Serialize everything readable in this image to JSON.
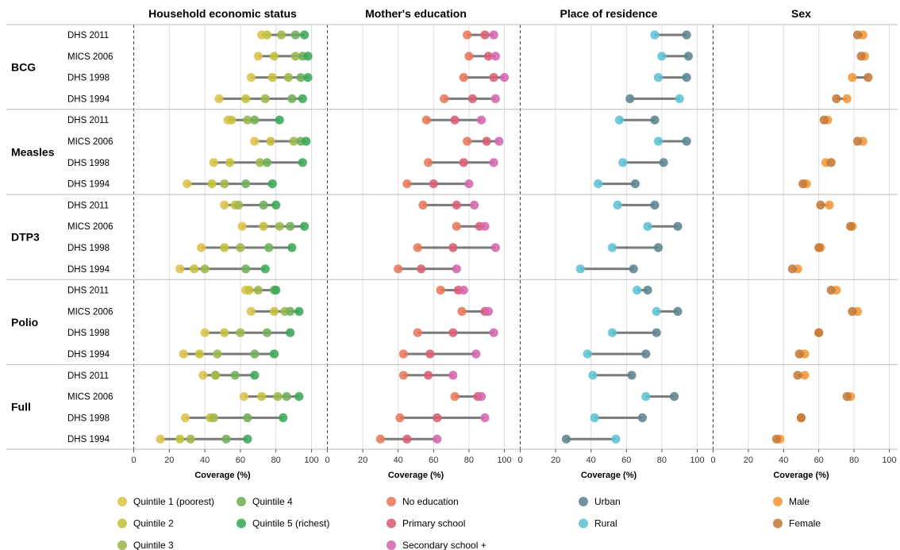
{
  "chart_data": {
    "type": "scatter",
    "xlabel": "Coverage (%)",
    "xlim": [
      0,
      100
    ],
    "xticks": [
      0,
      20,
      40,
      60,
      80,
      100
    ],
    "facets": [
      {
        "key": "wealth",
        "title": "Household economic status"
      },
      {
        "key": "edu",
        "title": "Mother's education"
      },
      {
        "key": "res",
        "title": "Place of residence"
      },
      {
        "key": "sex",
        "title": "Sex"
      }
    ],
    "surveys": [
      "DHS 2011",
      "MICS 2006",
      "DHS 1998",
      "DHS 1994"
    ],
    "indicators": [
      {
        "name": "BCG",
        "values": {
          "DHS 2011": {
            "wealth": [
              72,
              75,
              83,
              91,
              96
            ],
            "edu": [
              79,
              89,
              94
            ],
            "res": [
              94,
              76
            ],
            "sex": [
              85,
              82
            ]
          },
          "MICS 2006": {
            "wealth": [
              70,
              79,
              91,
              95,
              98
            ],
            "edu": [
              80,
              91,
              95
            ],
            "res": [
              95,
              80
            ],
            "sex": [
              86,
              84
            ]
          },
          "DHS 1998": {
            "wealth": [
              66,
              78,
              87,
              94,
              98
            ],
            "edu": [
              77,
              94,
              100
            ],
            "res": [
              94,
              78
            ],
            "sex": [
              79,
              88
            ]
          },
          "DHS 1994": {
            "wealth": [
              48,
              63,
              74,
              89,
              95
            ],
            "edu": [
              66,
              82,
              95
            ],
            "res": [
              62,
              90
            ],
            "sex": [
              76,
              70
            ]
          }
        }
      },
      {
        "name": "Measles",
        "values": {
          "DHS 2011": {
            "wealth": [
              53,
              55,
              64,
              68,
              82
            ],
            "edu": [
              56,
              72,
              87
            ],
            "res": [
              76,
              56
            ],
            "sex": [
              65,
              63
            ]
          },
          "MICS 2006": {
            "wealth": [
              68,
              77,
              90,
              94,
              97
            ],
            "edu": [
              79,
              90,
              97
            ],
            "res": [
              94,
              78
            ],
            "sex": [
              85,
              82
            ]
          },
          "DHS 1998": {
            "wealth": [
              45,
              54,
              71,
              75,
              95
            ],
            "edu": [
              57,
              77,
              94
            ],
            "res": [
              81,
              58
            ],
            "sex": [
              64,
              67
            ]
          },
          "DHS 1994": {
            "wealth": [
              30,
              44,
              51,
              63,
              78
            ],
            "edu": [
              45,
              60,
              80
            ],
            "res": [
              65,
              44
            ],
            "sex": [
              53,
              51
            ]
          }
        }
      },
      {
        "name": "DTP3",
        "values": {
          "DHS 2011": {
            "wealth": [
              51,
              57,
              59,
              73,
              80
            ],
            "edu": [
              54,
              73,
              83
            ],
            "res": [
              76,
              55
            ],
            "sex": [
              66,
              61
            ]
          },
          "MICS 2006": {
            "wealth": [
              61,
              73,
              82,
              88,
              96
            ],
            "edu": [
              73,
              86,
              89
            ],
            "res": [
              89,
              72
            ],
            "sex": [
              79,
              78
            ]
          },
          "DHS 1998": {
            "wealth": [
              38,
              51,
              60,
              76,
              89
            ],
            "edu": [
              51,
              71,
              95
            ],
            "res": [
              78,
              52
            ],
            "sex": [
              61,
              60
            ]
          },
          "DHS 1994": {
            "wealth": [
              26,
              34,
              40,
              63,
              74
            ],
            "edu": [
              40,
              53,
              73
            ],
            "res": [
              64,
              34
            ],
            "sex": [
              48,
              45
            ]
          }
        }
      },
      {
        "name": "Polio",
        "values": {
          "DHS 2011": {
            "wealth": [
              63,
              65,
              70,
              79,
              80
            ],
            "edu": [
              64,
              74,
              77
            ],
            "res": [
              72,
              66
            ],
            "sex": [
              70,
              67
            ]
          },
          "MICS 2006": {
            "wealth": [
              66,
              79,
              85,
              88,
              93
            ],
            "edu": [
              76,
              89,
              91
            ],
            "res": [
              89,
              77
            ],
            "sex": [
              82,
              79
            ]
          },
          "DHS 1998": {
            "wealth": [
              40,
              51,
              60,
              75,
              88
            ],
            "edu": [
              51,
              71,
              94
            ],
            "res": [
              77,
              52
            ],
            "sex": [
              60,
              60
            ]
          },
          "DHS 1994": {
            "wealth": [
              28,
              37,
              47,
              68,
              79
            ],
            "edu": [
              43,
              58,
              84
            ],
            "res": [
              71,
              38
            ],
            "sex": [
              52,
              49
            ]
          }
        }
      },
      {
        "name": "Full",
        "values": {
          "DHS 2011": {
            "wealth": [
              39,
              46,
              46,
              57,
              68
            ],
            "edu": [
              43,
              57,
              71
            ],
            "res": [
              63,
              41
            ],
            "sex": [
              52,
              48
            ]
          },
          "MICS 2006": {
            "wealth": [
              62,
              72,
              81,
              86,
              93
            ],
            "edu": [
              72,
              85,
              87
            ],
            "res": [
              87,
              71
            ],
            "sex": [
              78,
              76
            ]
          },
          "DHS 1998": {
            "wealth": [
              29,
              43,
              45,
              64,
              84
            ],
            "edu": [
              41,
              62,
              89
            ],
            "res": [
              69,
              42
            ],
            "sex": [
              50,
              50
            ]
          },
          "DHS 1994": {
            "wealth": [
              15,
              26,
              32,
              52,
              64
            ],
            "edu": [
              30,
              45,
              62
            ],
            "res": [
              26,
              54
            ],
            "sex": [
              38,
              36
            ]
          }
        }
      }
    ],
    "legend": [
      {
        "facet": "wealth",
        "entries": [
          {
            "label": "Quintile 1 (poorest)",
            "color": "#ddc14a"
          },
          {
            "label": "Quintile 2",
            "color": "#c4c23c"
          },
          {
            "label": "Quintile 3",
            "color": "#9db74a"
          },
          {
            "label": "Quintile 4",
            "color": "#6fb15a"
          },
          {
            "label": "Quintile 5 (richest)",
            "color": "#3aa856"
          }
        ]
      },
      {
        "facet": "edu",
        "entries": [
          {
            "label": "No education",
            "color": "#e8775a"
          },
          {
            "label": "Primary school",
            "color": "#d95d72"
          },
          {
            "label": "Secondary school +",
            "color": "#d567b0"
          }
        ]
      },
      {
        "facet": "res",
        "entries": [
          {
            "label": "Urban",
            "color": "#5b8590"
          },
          {
            "label": "Rural",
            "color": "#5cc3d4"
          }
        ]
      },
      {
        "facet": "sex",
        "entries": [
          {
            "label": "Male",
            "color": "#f49739"
          },
          {
            "label": "Female",
            "color": "#c47a3a"
          }
        ]
      }
    ],
    "line_color": "#7a7a7a",
    "grid": true
  }
}
